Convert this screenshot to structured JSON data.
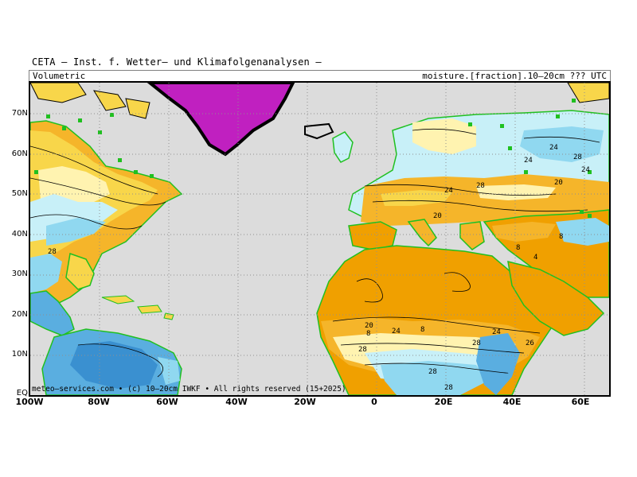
{
  "header": {
    "title": "CETA – Inst. f. Wetter– und Klimafolgenanalysen –"
  },
  "subtitle": {
    "left": "Volumetric",
    "right": "moisture.[fraction].10–20cm ??? UTC"
  },
  "footer": {
    "credit": "meteo–services.com • (c) 10–20cm IWKF • All rights reserved (15+2025)"
  },
  "axes": {
    "lat_labels": [
      "70N",
      "60N",
      "50N",
      "40N",
      "30N",
      "20N",
      "10N",
      "EQ"
    ],
    "lon_labels": [
      "100W",
      "80W",
      "60W",
      "40W",
      "20W",
      "0",
      "20E",
      "40E",
      "60E"
    ]
  },
  "contour_labels": [
    "24",
    "24",
    "28",
    "24",
    "20",
    "28",
    "24",
    "20",
    "28",
    "8",
    "8",
    "4",
    "8",
    "20",
    "28",
    "28",
    "24",
    "28",
    "8",
    "24",
    "26",
    "28"
  ],
  "colors": {
    "ocean": "#dcdcdc",
    "greenland": "#c020c0",
    "dry_orange": "#f0a000",
    "orange": "#f5b52a",
    "yellow": "#f8d64a",
    "light_yellow": "#fff3b0",
    "cream": "#fffbe0",
    "light_cyan": "#c8f0f8",
    "cyan": "#90d8f0",
    "blue": "#5aaee0",
    "coast_green": "#20c020"
  }
}
